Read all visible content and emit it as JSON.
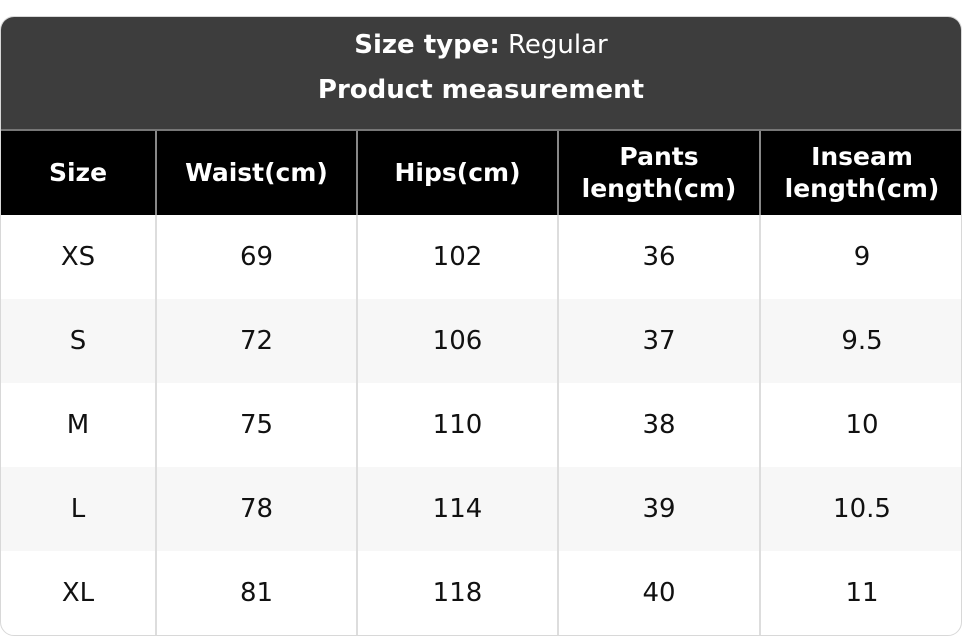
{
  "title": {
    "size_type_label": "Size type:",
    "size_type_value": "Regular",
    "subtitle": "Product measurement"
  },
  "columns": [
    "Size",
    "Waist(cm)",
    "Hips(cm)",
    "Pants length(cm)",
    "Inseam length(cm)"
  ],
  "rows": [
    [
      "XS",
      "69",
      "102",
      "36",
      "9"
    ],
    [
      "S",
      "72",
      "106",
      "37",
      "9.5"
    ],
    [
      "M",
      "75",
      "110",
      "38",
      "10"
    ],
    [
      "L",
      "78",
      "114",
      "39",
      "10.5"
    ],
    [
      "XL",
      "81",
      "118",
      "40",
      "11"
    ]
  ]
}
